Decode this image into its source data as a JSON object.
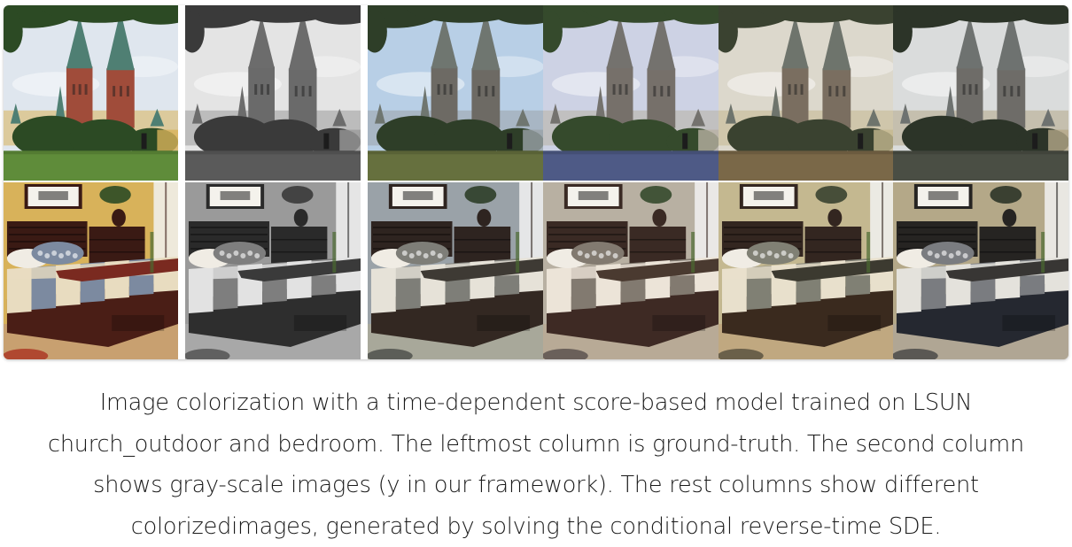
{
  "figure": {
    "rows": [
      "church_outdoor",
      "bedroom"
    ],
    "columns": [
      {
        "role": "ground-truth",
        "palette": {
          "sky": "#dfe6ee",
          "tower": "#a04c3a",
          "spire": "#4f7f73",
          "grass": "#5f8c3a",
          "tree": "#2c4a24",
          "wall": "#d8b25a",
          "headboard": "#3a1a14",
          "bedframe": "#4a1e16",
          "stripeA": "#e8dcc0",
          "stripeB": "#7c8aa0",
          "throw": "#7a2a20",
          "floor": "#c8a070",
          "rug": "#b04830"
        }
      },
      {
        "role": "gray-scale",
        "palette": {
          "sky": "#e4e4e4",
          "tower": "#6a6a6a",
          "spire": "#6c6c6c",
          "grass": "#5a5a5a",
          "tree": "#3a3a3a",
          "wall": "#9a9a9a",
          "headboard": "#2a2a2a",
          "bedframe": "#2e2e2e",
          "stripeA": "#e2e2e2",
          "stripeB": "#7e7e7e",
          "throw": "#3a3a3a",
          "floor": "#a8a8a8",
          "rug": "#606060"
        }
      },
      {
        "role": "colorized",
        "palette": {
          "sky": "#b8cfe6",
          "tower": "#6d6a64",
          "spire": "#6f7670",
          "grass": "#66703e",
          "tree": "#2e3e28",
          "wall": "#9aa2a8",
          "headboard": "#2e2420",
          "bedframe": "#332822",
          "stripeA": "#e6e2d8",
          "stripeB": "#7e7e78",
          "throw": "#3e3a34",
          "floor": "#a8a89a",
          "rug": "#5c5e58"
        }
      },
      {
        "role": "colorized",
        "palette": {
          "sky": "#cdd2e4",
          "tower": "#76706a",
          "spire": "#74726e",
          "grass": "#4e5a86",
          "tree": "#354a2c",
          "wall": "#b8b0a2",
          "headboard": "#3a2a24",
          "bedframe": "#3e2a24",
          "stripeA": "#ece4d8",
          "stripeB": "#827a70",
          "throw": "#4a3a30",
          "floor": "#b8aa96",
          "rug": "#6a605a"
        }
      },
      {
        "role": "colorized",
        "palette": {
          "sky": "#dcd8cc",
          "tower": "#7a6e60",
          "spire": "#6e746c",
          "grass": "#7a6848",
          "tree": "#3a4230",
          "wall": "#c4b890",
          "headboard": "#332620",
          "bedframe": "#3a2a1e",
          "stripeA": "#e8e0cc",
          "stripeB": "#808074",
          "throw": "#3c3a30",
          "floor": "#c0a880",
          "rug": "#6a604a"
        }
      },
      {
        "role": "colorized",
        "palette": {
          "sky": "#dadcdc",
          "tower": "#6e6c68",
          "spire": "#6e7270",
          "grass": "#4a4e44",
          "tree": "#2c3428",
          "wall": "#b4a888",
          "headboard": "#262422",
          "bedframe": "#252830",
          "stripeA": "#e4e2dc",
          "stripeB": "#7a7c80",
          "throw": "#383634",
          "floor": "#b0a694",
          "rug": "#5a5854"
        }
      }
    ]
  },
  "caption": {
    "lines": [
      "Image colorization with a time-dependent score-based model trained on LSUN",
      "church_outdoor and bedroom. The leftmost column is ground-truth. The second column",
      "shows gray-scale images (y in our framework). The rest columns show different",
      "colorizedimages, generated by solving the conditional reverse-time SDE."
    ]
  }
}
